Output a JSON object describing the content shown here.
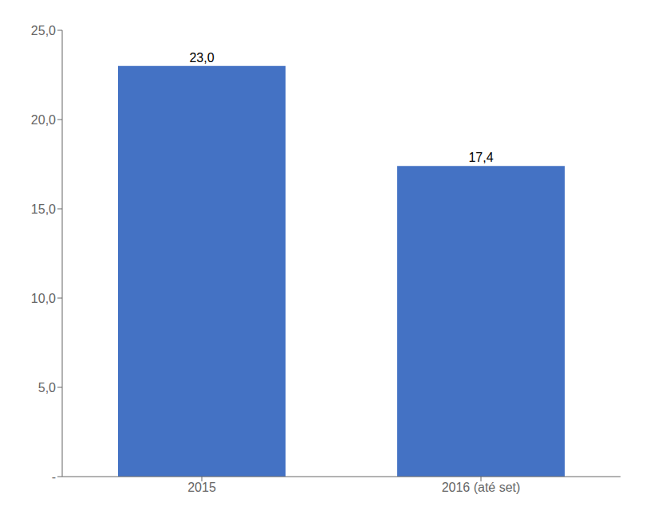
{
  "chart_data": {
    "type": "bar",
    "categories": [
      "2015",
      "2016 (até set)"
    ],
    "values": [
      23.0,
      17.4
    ],
    "value_labels": [
      "23,0",
      "17,4"
    ],
    "data_labels": true,
    "color": "#4472C4",
    "ylim": [
      0,
      25.0
    ],
    "yticks": [
      {
        "value": 0,
        "label": "-"
      },
      {
        "value": 5.0,
        "label": "5,0"
      },
      {
        "value": 10.0,
        "label": "10,0"
      },
      {
        "value": 15.0,
        "label": "15,0"
      },
      {
        "value": 20.0,
        "label": "20,0"
      },
      {
        "value": 25.0,
        "label": "25,0"
      }
    ],
    "grid": false
  }
}
